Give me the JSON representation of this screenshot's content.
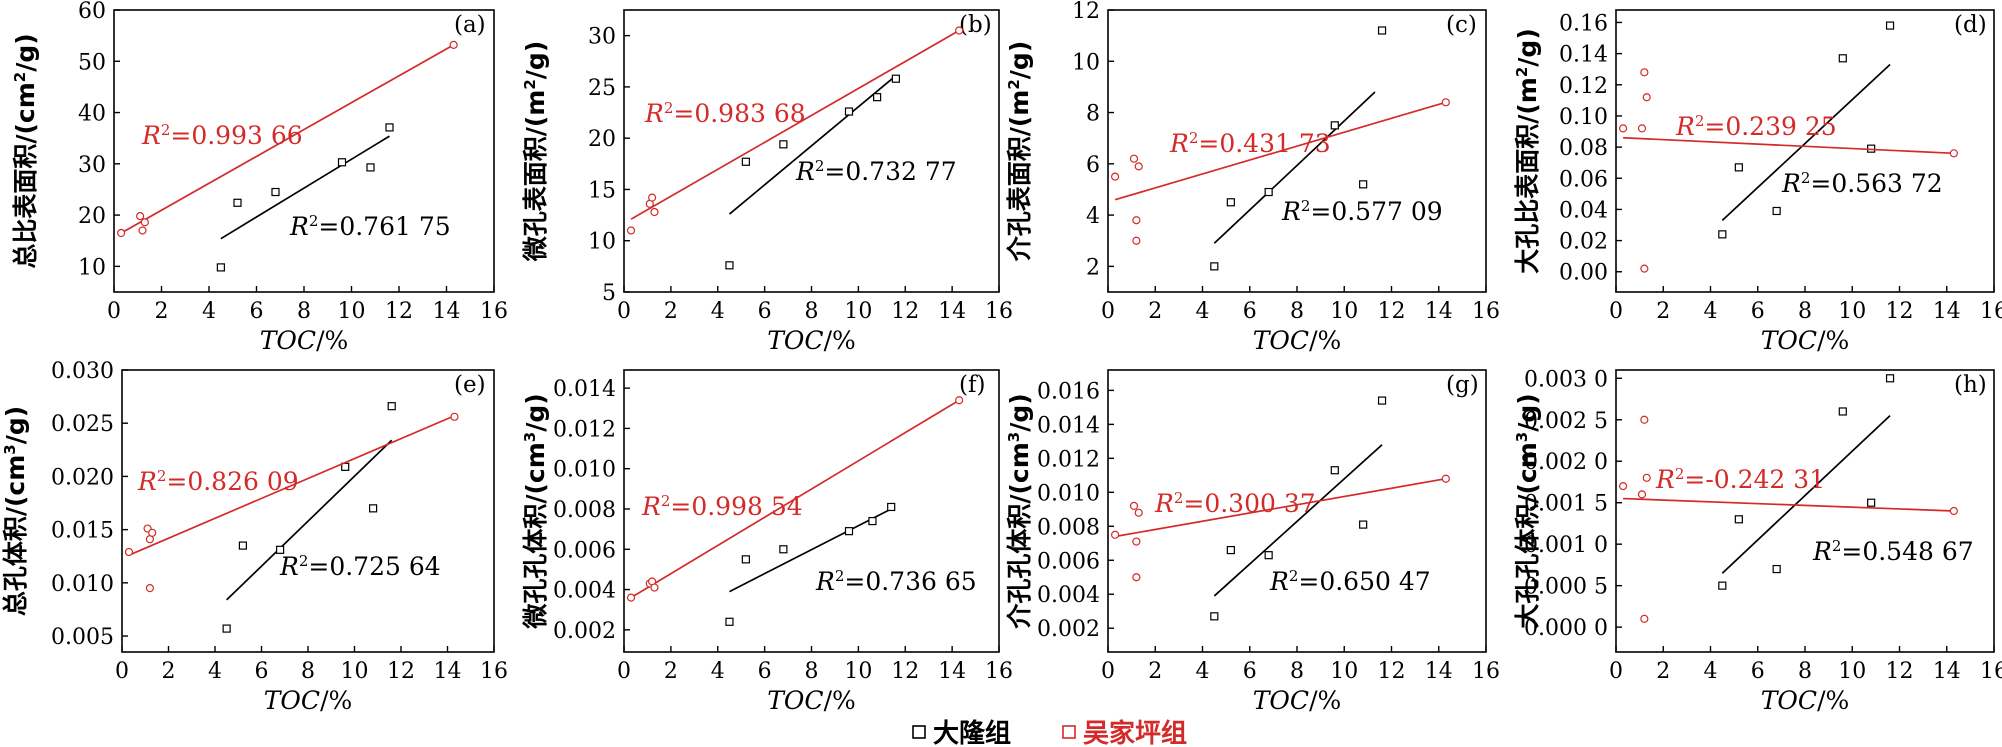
{
  "legend": [
    {
      "label": "大隆组",
      "color": "#000000"
    },
    {
      "label": "吴家坪组",
      "color": "#d42a2a"
    }
  ],
  "chart_data": [
    {
      "type": "scatter",
      "panel": "(a)",
      "ylabel_main": "总比表面积/(cm",
      "ylabel_sup": "2",
      "ylabel_tail": "/g)",
      "xlabel_main": "TOC",
      "xlabel_tail": "/%",
      "xlim": [
        0,
        16
      ],
      "ylim": [
        5,
        60
      ],
      "xticks": [
        "0",
        "2",
        "4",
        "6",
        "8",
        "10",
        "12",
        "14",
        "16"
      ],
      "yticks": [
        "10",
        "20",
        "30",
        "40",
        "50",
        "60"
      ],
      "series": [
        {
          "name": "大隆组",
          "points": [
            [
              4.5,
              9.8
            ],
            [
              5.2,
              22.4
            ],
            [
              6.8,
              24.5
            ],
            [
              9.6,
              30.3
            ],
            [
              10.8,
              29.3
            ],
            [
              11.6,
              37.1
            ]
          ],
          "fit": [
            [
              4.5,
              15.4
            ],
            [
              11.6,
              35.4
            ]
          ],
          "r2_value": "0.761 75"
        },
        {
          "name": "吴家坪组",
          "points": [
            [
              0.3,
              16.5
            ],
            [
              1.1,
              19.8
            ],
            [
              1.2,
              17
            ],
            [
              1.3,
              18.6
            ],
            [
              14.3,
              53.2
            ]
          ],
          "fit": [
            [
              0.3,
              16.5
            ],
            [
              14.3,
              53.2
            ]
          ],
          "r2_value": "0.993 66"
        }
      ]
    },
    {
      "type": "scatter",
      "panel": "(b)",
      "ylabel_main": "微孔表面积/(m",
      "ylabel_sup": "2",
      "ylabel_tail": "/g)",
      "xlabel_main": "TOC",
      "xlabel_tail": "/%",
      "xlim": [
        0,
        16
      ],
      "ylim": [
        5,
        32.5
      ],
      "xticks": [
        "0",
        "2",
        "4",
        "6",
        "8",
        "10",
        "12",
        "14",
        "16"
      ],
      "yticks": [
        "5",
        "10",
        "15",
        "20",
        "25",
        "30"
      ],
      "series": [
        {
          "name": "大隆组",
          "points": [
            [
              4.5,
              7.6
            ],
            [
              5.2,
              17.7
            ],
            [
              6.8,
              19.4
            ],
            [
              9.6,
              22.6
            ],
            [
              10.8,
              24
            ],
            [
              11.6,
              25.8
            ]
          ],
          "fit": [
            [
              4.5,
              12.6
            ],
            [
              11.6,
              26.1
            ]
          ],
          "r2_value": "0.732 77"
        },
        {
          "name": "吴家坪组",
          "points": [
            [
              0.3,
              11
            ],
            [
              1.1,
              13.6
            ],
            [
              1.2,
              14.2
            ],
            [
              1.3,
              12.8
            ],
            [
              14.3,
              30.5
            ]
          ],
          "fit": [
            [
              0.3,
              12.1
            ],
            [
              14.3,
              30.5
            ]
          ],
          "r2_value": "0.983 68"
        }
      ]
    },
    {
      "type": "scatter",
      "panel": "(c)",
      "ylabel_main": "介孔表面积/(m",
      "ylabel_sup": "2",
      "ylabel_tail": "/g)",
      "xlabel_main": "TOC",
      "xlabel_tail": "/%",
      "xlim": [
        0,
        16
      ],
      "ylim": [
        1,
        12
      ],
      "xticks": [
        "0",
        "2",
        "4",
        "6",
        "8",
        "10",
        "12",
        "14",
        "16"
      ],
      "yticks": [
        "2",
        "4",
        "6",
        "8",
        "10",
        "12"
      ],
      "series": [
        {
          "name": "大隆组",
          "points": [
            [
              4.5,
              2
            ],
            [
              5.2,
              4.5
            ],
            [
              6.8,
              4.9
            ],
            [
              9.6,
              7.5
            ],
            [
              10.8,
              5.2
            ],
            [
              11.6,
              11.2
            ]
          ],
          "fit": [
            [
              4.5,
              2.9
            ],
            [
              11.3,
              8.8
            ]
          ],
          "r2_value": "0.577 09"
        },
        {
          "name": "吴家坪组",
          "points": [
            [
              0.3,
              5.5
            ],
            [
              1.1,
              6.2
            ],
            [
              1.2,
              3.8
            ],
            [
              1.2,
              3
            ],
            [
              1.3,
              5.9
            ],
            [
              14.3,
              8.4
            ]
          ],
          "fit": [
            [
              0.3,
              4.6
            ],
            [
              14.3,
              8.4
            ]
          ],
          "r2_value": "0.431 73"
        }
      ]
    },
    {
      "type": "scatter",
      "panel": "(d)",
      "ylabel_main": "大孔比表面积/(m",
      "ylabel_sup": "2",
      "ylabel_tail": "/g)",
      "xlabel_main": "TOC",
      "xlabel_tail": "/%",
      "xlim": [
        0,
        16
      ],
      "ylim": [
        -0.013,
        0.168
      ],
      "xticks": [
        "0",
        "2",
        "4",
        "6",
        "8",
        "10",
        "12",
        "14",
        "16"
      ],
      "yticks": [
        "0.00",
        "0.02",
        "0.04",
        "0.06",
        "0.08",
        "0.10",
        "0.12",
        "0.14",
        "0.16"
      ],
      "series": [
        {
          "name": "大隆组",
          "points": [
            [
              4.5,
              0.024
            ],
            [
              5.2,
              0.067
            ],
            [
              6.8,
              0.039
            ],
            [
              9.6,
              0.137
            ],
            [
              10.8,
              0.079
            ],
            [
              11.6,
              0.158
            ]
          ],
          "fit": [
            [
              4.5,
              0.033
            ],
            [
              11.6,
              0.133
            ]
          ],
          "r2_value": "0.563 72"
        },
        {
          "name": "吴家坪组",
          "points": [
            [
              0.3,
              0.092
            ],
            [
              1.1,
              0.092
            ],
            [
              1.2,
              0.128
            ],
            [
              1.3,
              0.112
            ],
            [
              1.2,
              0.002
            ],
            [
              14.3,
              0.076
            ]
          ],
          "fit": [
            [
              0.3,
              0.086
            ],
            [
              14.3,
              0.076
            ]
          ],
          "r2_value": "0.239 25"
        }
      ]
    },
    {
      "type": "scatter",
      "panel": "(e)",
      "ylabel_main": "总孔体积/(cm",
      "ylabel_sup": "3",
      "ylabel_tail": "/g)",
      "xlabel_main": "TOC",
      "xlabel_tail": "/%",
      "xlim": [
        0,
        16
      ],
      "ylim": [
        0.0035,
        0.03
      ],
      "xticks": [
        "0",
        "2",
        "4",
        "6",
        "8",
        "10",
        "12",
        "14",
        "16"
      ],
      "yticks": [
        "0.005",
        "0.010",
        "0.015",
        "0.020",
        "0.025",
        "0.030"
      ],
      "series": [
        {
          "name": "大隆组",
          "points": [
            [
              4.5,
              0.0057
            ],
            [
              5.2,
              0.0135
            ],
            [
              6.8,
              0.0131
            ],
            [
              9.6,
              0.0209
            ],
            [
              10.8,
              0.017
            ],
            [
              11.6,
              0.0266
            ]
          ],
          "fit": [
            [
              4.5,
              0.0084
            ],
            [
              11.6,
              0.0234
            ]
          ],
          "r2_value": "0.725 64"
        },
        {
          "name": "吴家坪组",
          "points": [
            [
              0.3,
              0.0129
            ],
            [
              1.1,
              0.0151
            ],
            [
              1.2,
              0.0141
            ],
            [
              1.3,
              0.0147
            ],
            [
              1.2,
              0.0095
            ],
            [
              14.3,
              0.0256
            ]
          ],
          "fit": [
            [
              0.3,
              0.0126
            ],
            [
              14.3,
              0.0257
            ]
          ],
          "r2_value": "0.826 09"
        }
      ]
    },
    {
      "type": "scatter",
      "panel": "(f)",
      "ylabel_main": "微孔孔体积/(cm",
      "ylabel_sup": "3",
      "ylabel_tail": "/g)",
      "xlabel_main": "TOC",
      "xlabel_tail": "/%",
      "xlim": [
        0,
        16
      ],
      "ylim": [
        0.0009,
        0.0149
      ],
      "xticks": [
        "0",
        "2",
        "4",
        "6",
        "8",
        "10",
        "12",
        "14",
        "16"
      ],
      "yticks": [
        "0.002",
        "0.004",
        "0.006",
        "0.008",
        "0.010",
        "0.012",
        "0.014"
      ],
      "series": [
        {
          "name": "大隆组",
          "points": [
            [
              4.5,
              0.0024
            ],
            [
              5.2,
              0.0055
            ],
            [
              6.8,
              0.006
            ],
            [
              9.6,
              0.0069
            ],
            [
              10.6,
              0.0074
            ],
            [
              11.4,
              0.0081
            ]
          ],
          "fit": [
            [
              4.5,
              0.0039
            ],
            [
              11.4,
              0.008
            ]
          ],
          "r2_value": "0.736 65"
        },
        {
          "name": "吴家坪组",
          "points": [
            [
              0.3,
              0.0036
            ],
            [
              1.1,
              0.0043
            ],
            [
              1.2,
              0.0044
            ],
            [
              1.3,
              0.0041
            ],
            [
              14.3,
              0.0134
            ]
          ],
          "fit": [
            [
              0.3,
              0.0036
            ],
            [
              14.3,
              0.0134
            ]
          ],
          "r2_value": "0.998 54"
        }
      ]
    },
    {
      "type": "scatter",
      "panel": "(g)",
      "ylabel_main": "介孔孔体积/(cm",
      "ylabel_sup": "3",
      "ylabel_tail": "/g)",
      "xlabel_main": "TOC",
      "xlabel_tail": "/%",
      "xlim": [
        0,
        16
      ],
      "ylim": [
        0.0006,
        0.0172
      ],
      "xticks": [
        "0",
        "2",
        "4",
        "6",
        "8",
        "10",
        "12",
        "14",
        "16"
      ],
      "yticks": [
        "0.002",
        "0.004",
        "0.006",
        "0.008",
        "0.010",
        "0.012",
        "0.014",
        "0.016"
      ],
      "series": [
        {
          "name": "大隆组",
          "points": [
            [
              4.5,
              0.0027
            ],
            [
              5.2,
              0.0066
            ],
            [
              6.8,
              0.0063
            ],
            [
              9.6,
              0.0113
            ],
            [
              10.8,
              0.0081
            ],
            [
              11.6,
              0.0154
            ]
          ],
          "fit": [
            [
              4.5,
              0.0039
            ],
            [
              11.6,
              0.0128
            ]
          ],
          "r2_value": "0.650 47"
        },
        {
          "name": "吴家坪组",
          "points": [
            [
              0.3,
              0.0075
            ],
            [
              1.1,
              0.0092
            ],
            [
              1.2,
              0.0071
            ],
            [
              1.2,
              0.005
            ],
            [
              1.3,
              0.0088
            ],
            [
              14.3,
              0.0108
            ]
          ],
          "fit": [
            [
              0.3,
              0.0074
            ],
            [
              14.3,
              0.0108
            ]
          ],
          "r2_value": "0.300 37"
        }
      ]
    },
    {
      "type": "scatter",
      "panel": "(h)",
      "ylabel_main": "大孔孔体积/(cm",
      "ylabel_sup": "3",
      "ylabel_tail": "/g)",
      "xlabel_main": "TOC",
      "xlabel_tail": "/%",
      "xlim": [
        0,
        16
      ],
      "ylim": [
        -0.0003,
        0.0031
      ],
      "xticks": [
        "0",
        "2",
        "4",
        "6",
        "8",
        "10",
        "12",
        "14",
        "16"
      ],
      "yticks": [
        "0.000 0",
        "0.000 5",
        "0.001 0",
        "0.001 5",
        "0.002 0",
        "0.002 5",
        "0.003 0"
      ],
      "series": [
        {
          "name": "大隆组",
          "points": [
            [
              4.5,
              0.0005
            ],
            [
              5.2,
              0.0013
            ],
            [
              6.8,
              0.0007
            ],
            [
              9.6,
              0.0026
            ],
            [
              10.8,
              0.0015
            ],
            [
              11.6,
              0.003
            ]
          ],
          "fit": [
            [
              4.5,
              0.00065
            ],
            [
              11.6,
              0.00255
            ]
          ],
          "r2_value": "0.548 67"
        },
        {
          "name": "吴家坪组",
          "points": [
            [
              0.3,
              0.0017
            ],
            [
              1.1,
              0.0016
            ],
            [
              1.2,
              0.0025
            ],
            [
              1.3,
              0.0018
            ],
            [
              1.2,
              0.0001
            ],
            [
              14.3,
              0.0014
            ]
          ],
          "fit": [
            [
              0.3,
              0.00155
            ],
            [
              14.3,
              0.0014
            ]
          ],
          "r2_value": "-0.242 31"
        }
      ]
    }
  ]
}
